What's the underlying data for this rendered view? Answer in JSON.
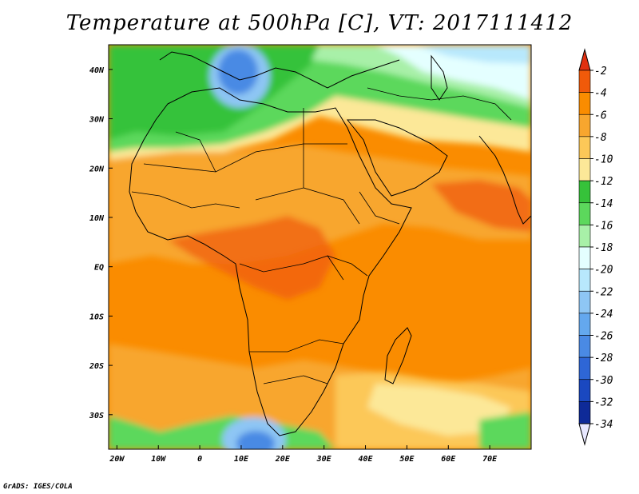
{
  "title": "Temperature at 500hPa [C], VT: 2017111412",
  "credit": "GrADS: IGES/COLA",
  "map": {
    "lon_range": [
      -22,
      80
    ],
    "lat_range": [
      -37,
      45
    ],
    "x_ticks": [
      {
        "lon": -20,
        "label": "20W"
      },
      {
        "lon": -10,
        "label": "10W"
      },
      {
        "lon": 0,
        "label": "0"
      },
      {
        "lon": 10,
        "label": "10E"
      },
      {
        "lon": 20,
        "label": "20E"
      },
      {
        "lon": 30,
        "label": "30E"
      },
      {
        "lon": 40,
        "label": "40E"
      },
      {
        "lon": 50,
        "label": "50E"
      },
      {
        "lon": 60,
        "label": "60E"
      },
      {
        "lon": 70,
        "label": "70E"
      }
    ],
    "y_ticks": [
      {
        "lat": 40,
        "label": "40N"
      },
      {
        "lat": 30,
        "label": "30N"
      },
      {
        "lat": 20,
        "label": "20N"
      },
      {
        "lat": 10,
        "label": "10N"
      },
      {
        "lat": 0,
        "label": "EQ"
      },
      {
        "lat": -10,
        "label": "10S"
      },
      {
        "lat": -20,
        "label": "20S"
      },
      {
        "lat": -30,
        "label": "30S"
      }
    ]
  },
  "colorbar": {
    "levels": [
      "-2",
      "-4",
      "-6",
      "-8",
      "-10",
      "-12",
      "-14",
      "-16",
      "-18",
      "-20",
      "-22",
      "-24",
      "-26",
      "-28",
      "-30",
      "-32",
      "-34"
    ],
    "colors": [
      "#f05a0a",
      "#fa8c00",
      "#f8a62e",
      "#fcc858",
      "#fce898",
      "#36c23a",
      "#5cd85c",
      "#a8f0a8",
      "#e4ffff",
      "#b8e8fc",
      "#8ec6f4",
      "#64a8ee",
      "#4a8ae4",
      "#2e66d6",
      "#1a48c0",
      "#0e2a98",
      "#0a1260"
    ],
    "top_color": "#e03010",
    "bottom_color": "#e8e8ff"
  },
  "field_colors": {
    "c2": "#f05a0a",
    "c4": "#fa8c00",
    "c6": "#f8a62e",
    "c8": "#fcc858",
    "c10": "#fce898",
    "c12": "#36c23a",
    "c14": "#5cd85c",
    "c16": "#a8f0a8",
    "c18": "#e4ffff",
    "c20": "#b8e8fc",
    "c22": "#8ec6f4",
    "c24": "#64a8ee",
    "c26": "#4a8ae4"
  }
}
